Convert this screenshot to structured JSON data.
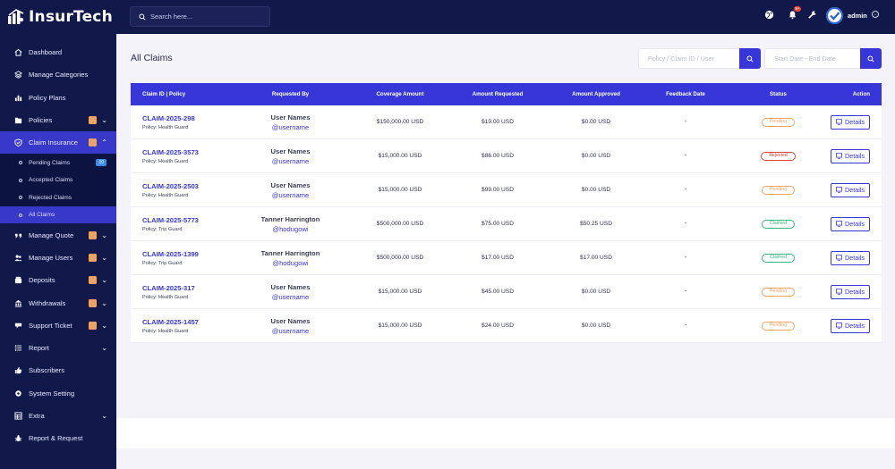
{
  "brand": {
    "name": "InsurTech"
  },
  "sidebar": {
    "items": [
      {
        "label": "Dashboard",
        "icon": "home-icon",
        "badge": false,
        "chevron": false
      },
      {
        "label": "Manage Categories",
        "icon": "layers-icon",
        "badge": false,
        "chevron": false
      },
      {
        "label": "Policy Plans",
        "icon": "bar-chart-icon",
        "badge": false,
        "chevron": false
      },
      {
        "label": "Policies",
        "icon": "folder-icon",
        "badge": true,
        "chevron": true
      },
      {
        "label": "Claim Insurance",
        "icon": "shield-icon",
        "badge": true,
        "chevron": true,
        "expanded": true
      },
      {
        "label": "Manage Quote",
        "icon": "quote-icon",
        "badge": true,
        "chevron": true
      },
      {
        "label": "Manage Users",
        "icon": "users-icon",
        "badge": true,
        "chevron": true
      },
      {
        "label": "Deposits",
        "icon": "deposit-icon",
        "badge": true,
        "chevron": true
      },
      {
        "label": "Withdrawals",
        "icon": "withdraw-icon",
        "badge": true,
        "chevron": true
      },
      {
        "label": "Support Ticket",
        "icon": "ticket-icon",
        "badge": true,
        "chevron": true
      },
      {
        "label": "Report",
        "icon": "list-icon",
        "badge": false,
        "chevron": true
      },
      {
        "label": "Subscribers",
        "icon": "thumbs-up-icon",
        "badge": false,
        "chevron": false
      },
      {
        "label": "System Setting",
        "icon": "gear-icon",
        "badge": false,
        "chevron": false
      },
      {
        "label": "Extra",
        "icon": "grid-icon",
        "badge": false,
        "chevron": true
      },
      {
        "label": "Report & Request",
        "icon": "bug-icon",
        "badge": false,
        "chevron": false
      }
    ],
    "claim_sub": [
      {
        "label": "Pending Claims",
        "count": "10"
      },
      {
        "label": "Accepted Claims"
      },
      {
        "label": "Rejected Claims"
      },
      {
        "label": "All Claims"
      }
    ]
  },
  "topbar": {
    "search_placeholder": "Search here...",
    "notif_count": "9+",
    "user": "admin"
  },
  "main": {
    "title": "All Claims",
    "filter_placeholder": "Policy / Claim ID / User",
    "date_placeholder": "Start Date - End Date",
    "columns": [
      "Claim ID | Policy",
      "Requested By",
      "Coverage Amount",
      "Amount Requested",
      "Amount Approved",
      "Feedback Date",
      "Status",
      "Action"
    ],
    "rows": [
      {
        "claim": "CLAIM-2025-298",
        "policy": "Policy: Health Guard",
        "name": "User Names",
        "handle": "@username",
        "coverage": "$150,000.00 USD",
        "requested": "$19.00 USD",
        "approved": "$0.00 USD",
        "feedback": "-",
        "status": "Pending",
        "status_type": "pending",
        "action": "Details"
      },
      {
        "claim": "CLAIM-2025-3573",
        "policy": "Policy: Health Guard",
        "name": "User Names",
        "handle": "@username",
        "coverage": "$15,000.00 USD",
        "requested": "$86.00 USD",
        "approved": "$0.00 USD",
        "feedback": "-",
        "status": "Rejected",
        "status_type": "rejected",
        "action": "Details"
      },
      {
        "claim": "CLAIM-2025-2503",
        "policy": "Policy: Health Guard",
        "name": "User Names",
        "handle": "@username",
        "coverage": "$15,000.00 USD",
        "requested": "$99.00 USD",
        "approved": "$0.00 USD",
        "feedback": "-",
        "status": "Pending",
        "status_type": "pending",
        "action": "Details"
      },
      {
        "claim": "CLAIM-2025-5773",
        "policy": "Policy: Trip Guard",
        "name": "Tanner Harrington",
        "handle": "@hodugowi",
        "coverage": "$500,000.00 USD",
        "requested": "$75.00 USD",
        "approved": "$50.25 USD",
        "feedback": "-",
        "status": "Claimed",
        "status_type": "claimed",
        "action": "Details"
      },
      {
        "claim": "CLAIM-2025-1399",
        "policy": "Policy: Trip Guard",
        "name": "Tanner Harrington",
        "handle": "@hodugowi",
        "coverage": "$500,000.00 USD",
        "requested": "$17.00 USD",
        "approved": "$17.00 USD",
        "feedback": "-",
        "status": "Claimed",
        "status_type": "claimed",
        "action": "Details"
      },
      {
        "claim": "CLAIM-2025-317",
        "policy": "Policy: Health Guard",
        "name": "User Names",
        "handle": "@username",
        "coverage": "$15,000.00 USD",
        "requested": "$45.00 USD",
        "approved": "$0.00 USD",
        "feedback": "-",
        "status": "Pending",
        "status_type": "pending",
        "action": "Details"
      },
      {
        "claim": "CLAIM-2025-1457",
        "policy": "Policy: Health Guard",
        "name": "User Names",
        "handle": "@username",
        "coverage": "$15,000.00 USD",
        "requested": "$24.00 USD",
        "approved": "$0.00 USD",
        "feedback": "-",
        "status": "Pending",
        "status_type": "pending",
        "action": "Details"
      }
    ]
  },
  "colors": {
    "sidebar_bg": "#11184a",
    "accent": "#3636d9",
    "pending": "#f0a35e",
    "rejected": "#e3443b",
    "claimed": "#37b680"
  }
}
